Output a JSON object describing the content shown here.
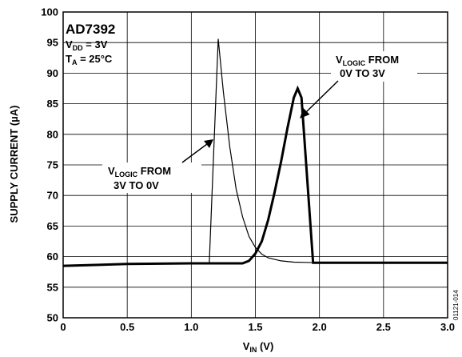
{
  "chart_data": {
    "type": "line",
    "title": "",
    "xlabel": {
      "main": "V",
      "sub": "IN",
      "unit": " (V)"
    },
    "ylabel": "SUPPLY CURRENT (µA)",
    "xlim": [
      0,
      3.0
    ],
    "ylim": [
      50,
      100
    ],
    "xticks": [
      "0",
      "0.5",
      "1.0",
      "1.5",
      "2.0",
      "2.5",
      "3.0"
    ],
    "yticks": [
      "50",
      "55",
      "60",
      "65",
      "70",
      "75",
      "80",
      "85",
      "90",
      "95",
      "100"
    ],
    "grid": true,
    "annotations": {
      "part": "AD7392",
      "vdd": {
        "main": "V",
        "sub": "DD",
        "rest": " = 3V"
      },
      "temp": {
        "main": "T",
        "sub": "A",
        "rest": " = 25°C"
      },
      "up_label": {
        "line1_main": "V",
        "line1_sub": "LOGIC",
        "line1_rest": " FROM",
        "line2": "0V TO 3V"
      },
      "down_label": {
        "line1_main": "V",
        "line1_sub": "LOGIC",
        "line1_rest": " FROM",
        "line2": "3V TO 0V"
      },
      "figure_id": "01121-014"
    },
    "series": [
      {
        "id": "logic-3v-to-0v",
        "color": "#000000",
        "width": 1.2,
        "points": [
          [
            0.0,
            58.5
          ],
          [
            0.5,
            58.8
          ],
          [
            1.0,
            58.9
          ],
          [
            1.14,
            58.9
          ],
          [
            1.21,
            95.6
          ],
          [
            1.25,
            87
          ],
          [
            1.3,
            78
          ],
          [
            1.35,
            71
          ],
          [
            1.4,
            66.5
          ],
          [
            1.45,
            63.3
          ],
          [
            1.5,
            61.5
          ],
          [
            1.55,
            60.4
          ],
          [
            1.6,
            59.8
          ],
          [
            1.7,
            59.3
          ],
          [
            1.8,
            59.1
          ],
          [
            2.0,
            59.0
          ],
          [
            2.5,
            59.0
          ],
          [
            3.0,
            59.0
          ]
        ]
      },
      {
        "id": "logic-0v-to-3v",
        "color": "#000000",
        "width": 3,
        "points": [
          [
            0.0,
            58.5
          ],
          [
            0.5,
            58.8
          ],
          [
            1.0,
            58.9
          ],
          [
            1.3,
            58.9
          ],
          [
            1.4,
            58.9
          ],
          [
            1.45,
            59.3
          ],
          [
            1.5,
            60.5
          ],
          [
            1.55,
            62.5
          ],
          [
            1.6,
            66
          ],
          [
            1.65,
            70.5
          ],
          [
            1.7,
            75.5
          ],
          [
            1.75,
            81
          ],
          [
            1.8,
            86
          ],
          [
            1.83,
            87.5
          ],
          [
            1.86,
            86
          ],
          [
            1.95,
            59.0
          ],
          [
            2.0,
            59.0
          ],
          [
            2.5,
            59.0
          ],
          [
            3.0,
            59.0
          ]
        ]
      }
    ]
  }
}
